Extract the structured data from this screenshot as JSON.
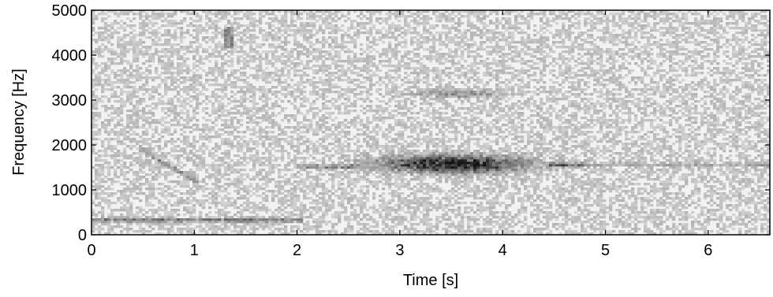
{
  "chart_data": {
    "type": "heatmap",
    "subtype": "spectrogram",
    "xlabel": "Time [s]",
    "ylabel": "Frequency [Hz]",
    "xlim": [
      0,
      6.6
    ],
    "ylim": [
      0,
      5000
    ],
    "x_ticks": [
      0,
      1,
      2,
      3,
      4,
      5,
      6
    ],
    "y_ticks": [
      0,
      1000,
      2000,
      3000,
      4000,
      5000
    ],
    "colormap": "gray-inverted",
    "grid": false,
    "features": [
      {
        "kind": "band",
        "t_start": 0.0,
        "t_end": 2.05,
        "f": 330,
        "intensity": 0.45
      },
      {
        "kind": "sweep",
        "t_start": 0.45,
        "t_end": 1.05,
        "f_start": 1950,
        "f_end": 1150,
        "intensity": 0.35
      },
      {
        "kind": "band",
        "t_start": 2.0,
        "t_end": 2.6,
        "f": 1520,
        "intensity": 0.4
      },
      {
        "kind": "blob",
        "t_start": 2.55,
        "t_end": 4.5,
        "f_center": 1580,
        "f_half_width": 180,
        "intensity": 1.0
      },
      {
        "kind": "band",
        "t_start": 4.45,
        "t_end": 4.85,
        "f": 1560,
        "intensity": 0.45
      },
      {
        "kind": "band",
        "t_start": 4.85,
        "t_end": 6.6,
        "f": 1560,
        "intensity": 0.2
      },
      {
        "kind": "blob",
        "t_start": 3.0,
        "t_end": 4.2,
        "f_center": 3150,
        "f_half_width": 80,
        "intensity": 0.4
      },
      {
        "kind": "spot",
        "t_start": 1.28,
        "t_end": 1.38,
        "f_start": 4150,
        "f_end": 4650,
        "intensity": 0.35
      }
    ]
  }
}
